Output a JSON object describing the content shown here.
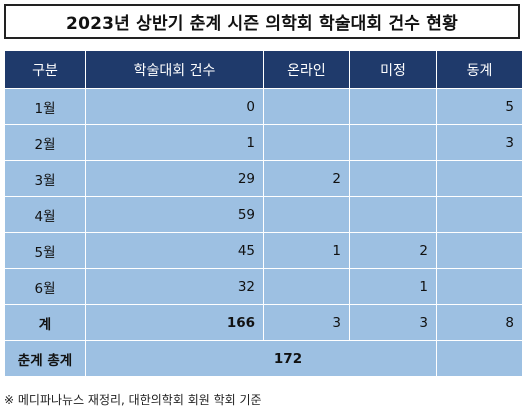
{
  "title": "2023년 상반기 춘계 시즌 의학회 학술대회 건수 현황",
  "columns": [
    "구분",
    "학술대회 건수",
    "온라인",
    "미정",
    "동계"
  ],
  "rows": [
    {
      "label": "1월",
      "count": "0",
      "online": "",
      "undecided": "",
      "winter": "5"
    },
    {
      "label": "2월",
      "count": "1",
      "online": "",
      "undecided": "",
      "winter": "3"
    },
    {
      "label": "3월",
      "count": "29",
      "online": "2",
      "undecided": "",
      "winter": ""
    },
    {
      "label": "4월",
      "count": "59",
      "online": "",
      "undecided": "",
      "winter": ""
    },
    {
      "label": "5월",
      "count": "45",
      "online": "1",
      "undecided": "2",
      "winter": ""
    },
    {
      "label": "6월",
      "count": "32",
      "online": "",
      "undecided": "1",
      "winter": ""
    }
  ],
  "subtotal": {
    "label": "계",
    "count": "166",
    "online": "3",
    "undecided": "3",
    "winter": "8"
  },
  "grand_total": {
    "label": "춘계 총계",
    "value": "172"
  },
  "note": "※ 메디파나뉴스 재정리, 대한의학회 회원 학회 기준",
  "colors": {
    "header_bg": "#1f3a6b",
    "cell_bg": "#9dc0e2"
  }
}
